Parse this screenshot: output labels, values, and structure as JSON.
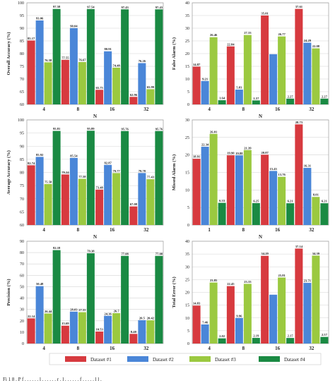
{
  "chart_data": [
    {
      "type": "bar",
      "categories": [
        "4",
        "8",
        "16",
        "32"
      ],
      "xlabel": "N",
      "ylabel": "Overall Accuracy (%)",
      "ylim": [
        60,
        100
      ],
      "yticks": [
        60,
        65,
        70,
        75,
        80,
        85,
        90,
        95,
        100
      ],
      "grid": true,
      "series": [
        {
          "name": "Dataset #1",
          "values": [
            85.17,
            77.55,
            65.75,
            62.96
          ],
          "labels": [
            "85.17",
            "77.55",
            "65.75",
            "62.96"
          ]
        },
        {
          "name": "Dataset #2",
          "values": [
            93.06,
            90.04,
            80.91,
            76.26
          ],
          "labels": [
            "93.06",
            "90.04",
            "80.91",
            "76.26"
          ]
        },
        {
          "name": "Dataset #3",
          "values": [
            76.58,
            76.67,
            74.48,
            65.99
          ],
          "labels": [
            "76.58",
            "76.67",
            "74.48",
            "65.99"
          ]
        },
        {
          "name": "Dataset #4",
          "values": [
            97.58,
            97.54,
            97.43,
            97.43
          ],
          "labels": [
            "97.58",
            "97.54",
            "97.43",
            "97.43"
          ]
        }
      ]
    },
    {
      "type": "bar",
      "categories": [
        "4",
        "8",
        "16",
        "32"
      ],
      "xlabel": "N",
      "ylabel": "False Alarm (%)",
      "ylim": [
        0,
        40
      ],
      "yticks": [
        0,
        5,
        10,
        15,
        20,
        25,
        30,
        35,
        40
      ],
      "grid": true,
      "series": [
        {
          "name": "Dataset #1",
          "values": [
            14.87,
            22.84,
            35.01,
            37.61
          ],
          "labels": [
            "14.87",
            "22.84",
            "35.01",
            "37.61"
          ]
        },
        {
          "name": "Dataset #2",
          "values": [
            9.21,
            5.83,
            19.77,
            24.29
          ],
          "labels": [
            "9.21",
            "5.83",
            "",
            "24.29"
          ]
        },
        {
          "name": "Dataset #3",
          "values": [
            26.46,
            27.33,
            26.77,
            22.08
          ],
          "labels": [
            "26.46",
            "27.33",
            "26.77",
            "22.08"
          ]
        },
        {
          "name": "Dataset #4",
          "values": [
            1.64,
            1.57,
            2.27,
            2.27
          ],
          "labels": [
            "1.64",
            "1.57",
            "2.27",
            "2.27"
          ]
        }
      ]
    },
    {
      "type": "bar",
      "categories": [
        "4",
        "8",
        "16",
        "32"
      ],
      "xlabel": "N",
      "ylabel": "Average Accuracy (%)",
      "ylim": [
        60,
        100
      ],
      "yticks": [
        60,
        65,
        70,
        75,
        80,
        85,
        90,
        95,
        100
      ],
      "grid": true,
      "series": [
        {
          "name": "Dataset #1",
          "values": [
            82.74,
            79.24,
            73.48,
            67.08
          ],
          "labels": [
            "82.74",
            "79.24",
            "73.48",
            "67.08"
          ]
        },
        {
          "name": "Dataset #2",
          "values": [
            85.92,
            85.54,
            82.87,
            79.78
          ],
          "labels": [
            "85.92",
            "85.54",
            "82.87",
            "79.78"
          ]
        },
        {
          "name": "Dataset #3",
          "values": [
            75.58,
            77.58,
            79.77,
            77.43
          ],
          "labels": [
            "75.58",
            "77.58",
            "79.77",
            "77.43"
          ]
        },
        {
          "name": "Dataset #4",
          "values": [
            95.81,
            95.89,
            95.76,
            95.76
          ],
          "labels": [
            "95.81",
            "95.89",
            "95.76",
            "95.76"
          ]
        }
      ]
    },
    {
      "type": "bar",
      "categories": [
        "1",
        "8",
        "16",
        "32"
      ],
      "xlabel": "N",
      "ylabel": "Missed Alarm (%)",
      "ylim": [
        0,
        30
      ],
      "yticks": [
        0,
        5,
        10,
        15,
        20,
        25,
        30
      ],
      "grid": true,
      "series": [
        {
          "name": "Dataset #1",
          "values": [
            18.91,
            19.9,
            20.07,
            28.73
          ],
          "labels": [
            "18.91",
            "19.90",
            "20.07",
            "28.73"
          ]
        },
        {
          "name": "Dataset #2",
          "values": [
            22.34,
            19.88,
            15.43,
            16.31
          ],
          "labels": [
            "22.34",
            "19.88",
            "15.43",
            "16.31"
          ]
        },
        {
          "name": "Dataset #3",
          "values": [
            26.01,
            21.39,
            13.76,
            8.01
          ],
          "labels": [
            "26.01",
            "21.39",
            "13.76",
            "8.01"
          ]
        },
        {
          "name": "Dataset #4",
          "values": [
            6.33,
            6.25,
            6.21,
            6.21
          ],
          "labels": [
            "6.33",
            "6.25",
            "6.21",
            "6.21"
          ]
        }
      ]
    },
    {
      "type": "bar",
      "categories": [
        "4",
        "8",
        "16",
        "32"
      ],
      "xlabel": "N",
      "ylabel": "Precision (%)",
      "ylim": [
        0,
        90
      ],
      "yticks": [
        0,
        10,
        20,
        30,
        40,
        50,
        60,
        70,
        80,
        90
      ],
      "grid": true,
      "series": [
        {
          "name": "Dataset #1",
          "values": [
            22.14,
            15.69,
            10.53,
            8.48
          ],
          "labels": [
            "22.14",
            "15.69",
            "10.53",
            "8.48"
          ]
        },
        {
          "name": "Dataset #2",
          "values": [
            50.48,
            28.03,
            24.36,
            20.5
          ],
          "labels": [
            "50.48",
            "28.03",
            "24.36",
            "20.5"
          ]
        },
        {
          "name": "Dataset #3",
          "values": [
            26.44,
            27.55,
            26.7,
            20.42
          ],
          "labels": [
            "26.44",
            "27.55",
            "26.7",
            "20.42"
          ]
        },
        {
          "name": "Dataset #4",
          "values": [
            82.18,
            79.38,
            77.08,
            77.08
          ],
          "labels": [
            "82.18",
            "79.38",
            "77.08",
            "77.08"
          ]
        }
      ]
    },
    {
      "type": "bar",
      "categories": [
        "4",
        "8",
        "16",
        "32"
      ],
      "xlabel": "N",
      "ylabel": "Total Error (%)",
      "ylim": [
        0,
        40
      ],
      "yticks": [
        0,
        5,
        10,
        15,
        20,
        25,
        30,
        35,
        40
      ],
      "grid": true,
      "series": [
        {
          "name": "Dataset #1",
          "values": [
            14.83,
            22.45,
            34.29,
            37.14
          ],
          "labels": [
            "14.83",
            "22.45",
            "34.29",
            "37.14"
          ]
        },
        {
          "name": "Dataset #2",
          "values": [
            7.46,
            9.96,
            19.09,
            23.71
          ],
          "labels": [
            "7.46",
            "9.96",
            "",
            "23.71"
          ]
        },
        {
          "name": "Dataset #3",
          "values": [
            23.85,
            23.33,
            25.81,
            34.39
          ],
          "labels": [
            "23.85",
            "23.33",
            "25.81",
            "34.39"
          ]
        },
        {
          "name": "Dataset #4",
          "values": [
            2.02,
            2.19,
            2.17,
            2.57
          ],
          "labels": [
            "2.02",
            "2.19",
            "2.17",
            "2.57"
          ]
        }
      ]
    }
  ],
  "legend": [
    {
      "name": "Dataset #1",
      "color": "#d73a3f"
    },
    {
      "name": "Dataset #2",
      "color": "#4a86d8"
    },
    {
      "name": "Dataset #3",
      "color": "#9bc940"
    },
    {
      "name": "Dataset #4",
      "color": "#1a8a43"
    }
  ],
  "colors": [
    "#d73a3f",
    "#4a86d8",
    "#9bc940",
    "#1a8a43"
  ],
  "caption": "Fi   1 8 . P  f  . . . . . .    l  . . . . . .       r  .     l  . . . . . .   f  . . . . .                     l     l  ."
}
